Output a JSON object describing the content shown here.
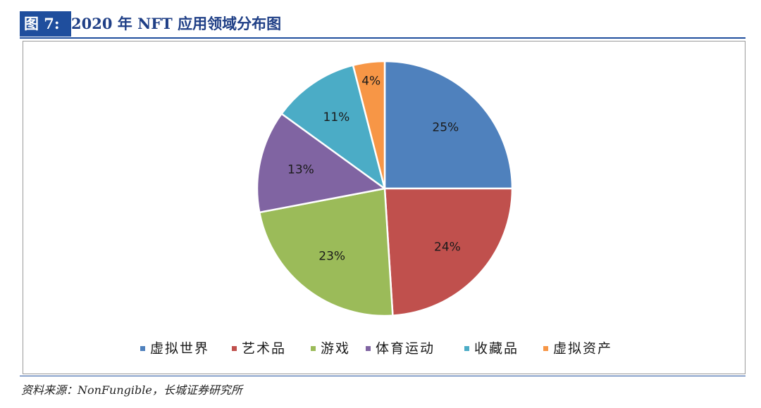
{
  "header": {
    "figure_tag": "图 7:",
    "title": "2020 年 NFT 应用领域分布图"
  },
  "source": "资料来源：NonFungible，长城证券研究所",
  "chart_data": {
    "type": "pie",
    "title": "",
    "categories": [
      "虚拟世界",
      "艺术品",
      "游戏",
      "体育运动",
      "收藏品",
      "虚拟资产"
    ],
    "values": [
      25,
      24,
      23,
      13,
      11,
      4
    ],
    "labels": [
      "25%",
      "24%",
      "23%",
      "13%",
      "11%",
      "4%"
    ],
    "colors": [
      "#4f81bd",
      "#c0504d",
      "#9bbb59",
      "#8064a2",
      "#4bacc6",
      "#f79646"
    ],
    "start_angle": "12 o'clock",
    "direction": "clockwise",
    "legend_placement": "bottom"
  }
}
